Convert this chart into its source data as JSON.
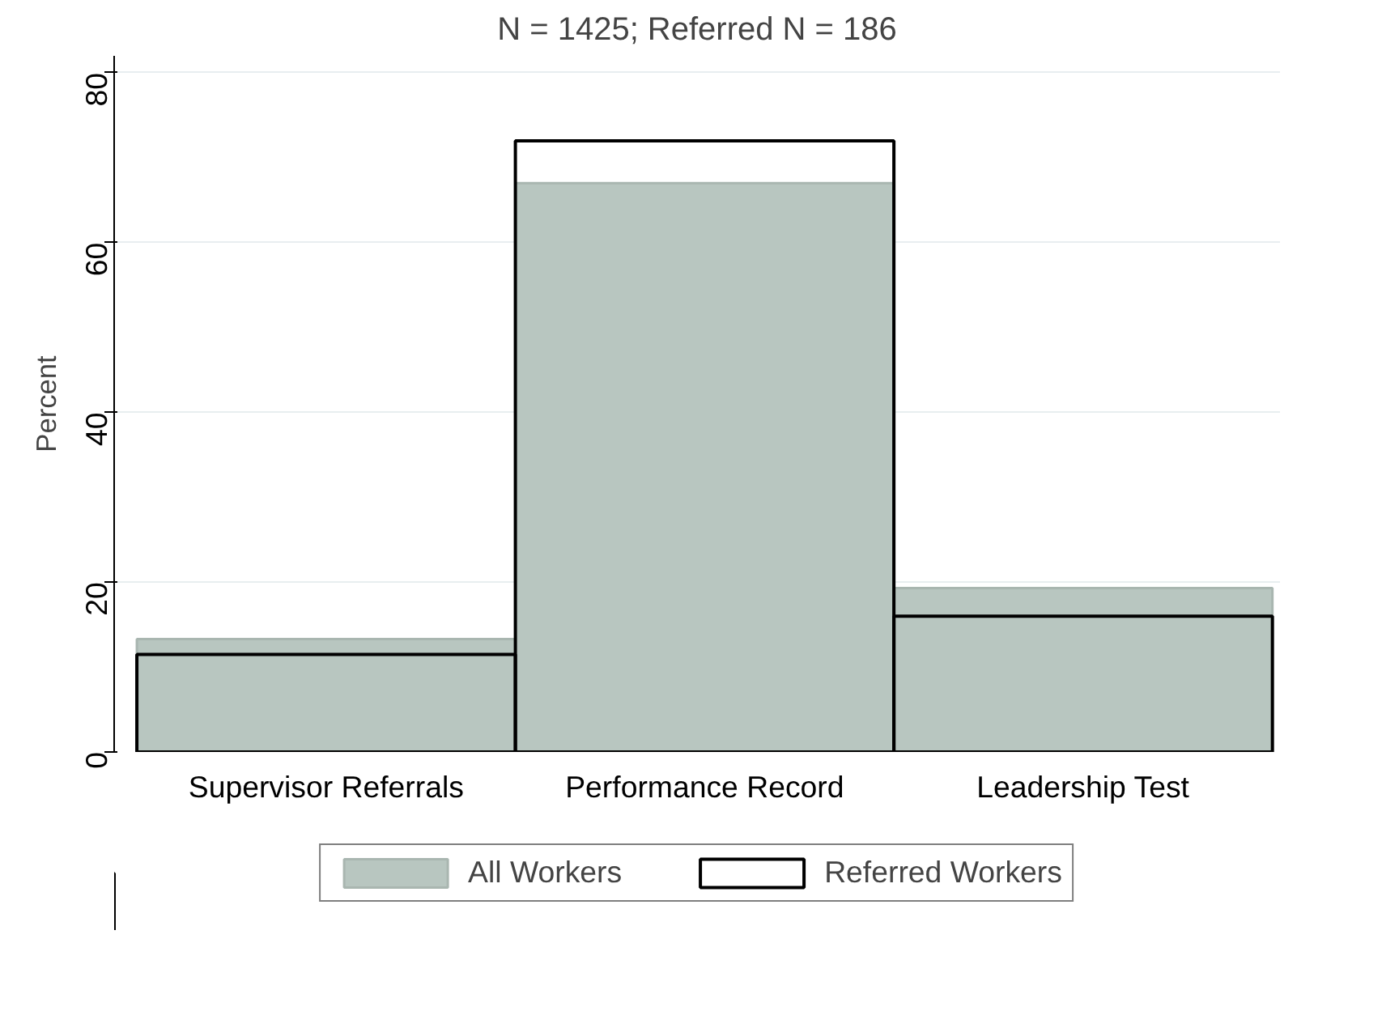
{
  "chart_data": {
    "type": "bar",
    "title": "N = 1425; Referred N = 186",
    "ylabel": "Percent",
    "categories": [
      "Supervisor Referrals",
      "Performance Record",
      "Leadership Test"
    ],
    "series": [
      {
        "name": "All Workers",
        "color": "#b8c6c0",
        "values": [
          13.3,
          67,
          19.3
        ]
      },
      {
        "name": "Referred Workers",
        "color": "#000000",
        "values": [
          11.5,
          72,
          16
        ]
      }
    ],
    "ylim": [
      0,
      82
    ],
    "yticks": [
      0,
      20,
      40,
      60,
      80
    ],
    "grid": "y",
    "legend": "bottom"
  }
}
